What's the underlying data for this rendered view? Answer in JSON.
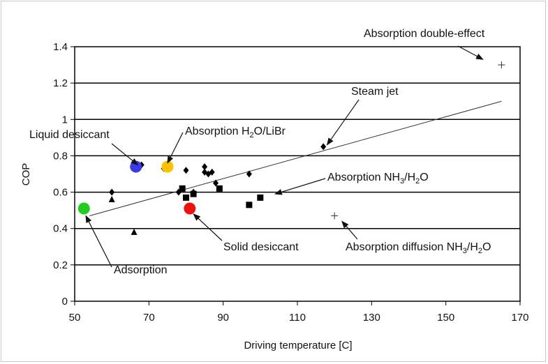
{
  "chart_data": {
    "type": "scatter",
    "xlabel": "Driving temperature [C]",
    "ylabel": "COP",
    "xlim": [
      50,
      170
    ],
    "ylim": [
      0,
      1.4
    ],
    "x_ticks": [
      50,
      70,
      90,
      110,
      130,
      150,
      170
    ],
    "y_ticks": [
      0,
      0.2,
      0.4,
      0.6,
      0.8,
      1,
      1.2,
      1.4
    ],
    "y_tick_labels": [
      "0",
      "0.2",
      "0.4",
      "0.6",
      "0.8",
      "1",
      "1.2",
      "1.4"
    ],
    "grid": "horizontal",
    "trendline": {
      "x": [
        54,
        165
      ],
      "y": [
        0.47,
        1.1
      ]
    },
    "series": [
      {
        "marker": "diamond",
        "color": "#000000",
        "x": [
          60,
          68,
          74,
          78,
          80,
          82,
          85,
          85,
          86,
          87,
          88,
          97,
          117
        ],
        "y": [
          0.6,
          0.75,
          0.73,
          0.6,
          0.72,
          0.6,
          0.74,
          0.71,
          0.7,
          0.71,
          0.65,
          0.7,
          0.85
        ]
      },
      {
        "marker": "triangle",
        "color": "#000000",
        "x": [
          60,
          66
        ],
        "y": [
          0.56,
          0.38
        ]
      },
      {
        "marker": "square",
        "color": "#000000",
        "x": [
          79,
          80,
          82,
          89,
          97,
          100
        ],
        "y": [
          0.62,
          0.57,
          0.59,
          0.62,
          0.53,
          0.57
        ]
      },
      {
        "marker": "plus",
        "color": "#000000",
        "x": [
          120,
          165
        ],
        "y": [
          0.47,
          1.3
        ]
      }
    ],
    "highlights": [
      {
        "x": 52.5,
        "y": 0.51,
        "color": "#22cc22"
      },
      {
        "x": 66.5,
        "y": 0.74,
        "color": "#3a3ae6"
      },
      {
        "x": 75,
        "y": 0.74,
        "color": "#ffc000"
      },
      {
        "x": 81,
        "y": 0.51,
        "color": "#ee1111"
      }
    ],
    "annotations": [
      {
        "id": "liquid-desiccant",
        "text": "Liquid desiccant",
        "from": [
          67,
          0.75
        ]
      },
      {
        "id": "absorption-libr",
        "text": "Absorption H",
        "sub1": "2",
        "mid": "O/LiBr",
        "sub2": "",
        "tail": "",
        "from": [
          75,
          0.76
        ]
      },
      {
        "id": "steam-jet",
        "text": "Steam jet",
        "from": [
          118,
          0.86
        ]
      },
      {
        "id": "absorption-nh3",
        "text": "Absorption NH",
        "sub1": "3",
        "mid": "/H",
        "sub2": "2",
        "tail": "O",
        "from": [
          104,
          0.59
        ]
      },
      {
        "id": "solid-desiccant",
        "text": "Solid desiccant",
        "from": [
          82,
          0.48
        ]
      },
      {
        "id": "absorption-diffusion",
        "text": "Absorption diffusion NH",
        "sub1": "3",
        "mid": "/H",
        "sub2": "2",
        "tail": "O",
        "from": [
          122,
          0.44
        ]
      },
      {
        "id": "adsorption",
        "text": "Adsorption",
        "from": [
          53,
          0.47
        ]
      },
      {
        "id": "absorption-double",
        "text": "Absorption double-effect",
        "from": [
          160,
          1.33
        ]
      }
    ]
  }
}
